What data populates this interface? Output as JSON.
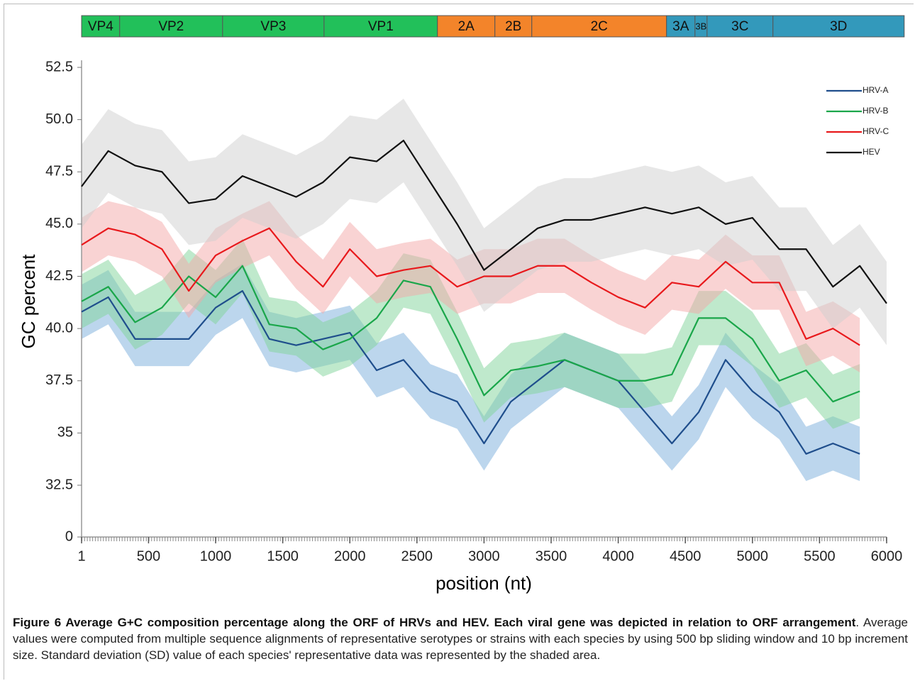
{
  "chart_data": {
    "type": "line",
    "ylabel": "GC percent",
    "xlabel": "position (nt)",
    "xlim": [
      1,
      6000
    ],
    "xticks": [
      1,
      500,
      1000,
      1500,
      2000,
      2500,
      3000,
      3500,
      4000,
      4500,
      5000,
      5500,
      6000
    ],
    "ylim": [
      0,
      52.5
    ],
    "ybreak": [
      0,
      32.5
    ],
    "yticks": [
      0,
      32.5,
      35,
      {
        "value": 37.5,
        "label": "37.5"
      },
      {
        "value": 40,
        "label": "40.0"
      },
      {
        "value": 42.5,
        "label": "42.5"
      },
      {
        "value": 45,
        "label": "45.0"
      },
      {
        "value": 47.5,
        "label": "47.5"
      },
      {
        "value": 50,
        "label": "50.0"
      },
      {
        "value": 52.5,
        "label": "52.5"
      }
    ],
    "legend": "upper right",
    "x": [
      1,
      200,
      400,
      600,
      800,
      1000,
      1200,
      1400,
      1600,
      1800,
      2000,
      2200,
      2400,
      2600,
      2800,
      3000,
      3200,
      3400,
      3600,
      3800,
      4000,
      4200,
      4400,
      4600,
      4800,
      5000,
      5200,
      5400,
      5600,
      5800,
      6000
    ],
    "series": [
      {
        "name": "HRV-A",
        "color": "#1f4e8c",
        "band_color": "#7aaedc",
        "sd": 1.3,
        "values": [
          40.8,
          41.5,
          39.5,
          39.5,
          39.5,
          41.0,
          41.8,
          39.5,
          39.2,
          39.5,
          39.8,
          38.0,
          38.5,
          37.0,
          36.5,
          34.5,
          36.5,
          37.5,
          38.5,
          38.0,
          37.5,
          36.0,
          34.5,
          36.0,
          38.5,
          37.0,
          36.0,
          34.0,
          34.5,
          34.0,
          null
        ]
      },
      {
        "name": "HRV-B",
        "color": "#1aa64a",
        "band_color": "#7fd39a",
        "sd": 1.3,
        "values": [
          41.3,
          42.0,
          40.3,
          41.0,
          42.5,
          41.5,
          43.0,
          40.2,
          40.0,
          39.0,
          39.5,
          40.5,
          42.3,
          42.0,
          39.5,
          36.8,
          38.0,
          38.2,
          38.5,
          38.0,
          37.5,
          37.5,
          37.8,
          40.5,
          40.5,
          39.5,
          37.5,
          38.0,
          36.5,
          37.0,
          null
        ]
      },
      {
        "name": "HRV-C",
        "color": "#e8191c",
        "band_color": "#f4a8a8",
        "sd": 1.3,
        "values": [
          44.0,
          44.8,
          44.5,
          43.8,
          41.8,
          43.5,
          44.2,
          44.8,
          43.2,
          42.0,
          43.8,
          42.5,
          42.8,
          43.0,
          42.0,
          42.5,
          42.5,
          43.0,
          43.0,
          42.2,
          41.5,
          41.0,
          42.2,
          42.0,
          43.2,
          42.2,
          42.2,
          39.5,
          40.0,
          39.2,
          null
        ]
      },
      {
        "name": "HEV",
        "color": "#111111",
        "band_color": "#cfcfcf",
        "sd": 2.0,
        "values": [
          46.8,
          48.5,
          47.8,
          47.5,
          46.0,
          46.2,
          47.3,
          46.8,
          46.3,
          47.0,
          48.2,
          48.0,
          49.0,
          47.0,
          45.0,
          42.8,
          43.8,
          44.8,
          45.2,
          45.2,
          45.5,
          45.8,
          45.5,
          45.8,
          45.0,
          45.3,
          43.8,
          43.8,
          42.0,
          43.0,
          41.2
        ]
      }
    ],
    "genes": [
      {
        "label": "VP4",
        "start": 1,
        "end": 285,
        "color": "#22c05a"
      },
      {
        "label": "VP2",
        "start": 285,
        "end": 1052,
        "color": "#22c05a"
      },
      {
        "label": "VP3",
        "start": 1052,
        "end": 1808,
        "color": "#22c05a"
      },
      {
        "label": "VP1",
        "start": 1808,
        "end": 2653,
        "color": "#22c05a"
      },
      {
        "label": "2A",
        "start": 2653,
        "end": 3081,
        "color": "#f3842a"
      },
      {
        "label": "2B",
        "start": 3081,
        "end": 3356,
        "color": "#f3842a"
      },
      {
        "label": "2C",
        "start": 3356,
        "end": 4360,
        "color": "#f3842a"
      },
      {
        "label": "3A",
        "start": 4360,
        "end": 4572,
        "color": "#3399bb"
      },
      {
        "label": "3B",
        "start": 4572,
        "end": 4662,
        "color": "#3399bb"
      },
      {
        "label": "3C",
        "start": 4662,
        "end": 5153,
        "color": "#3399bb"
      },
      {
        "label": "3D",
        "start": 5153,
        "end": 6131,
        "color": "#3399bb"
      }
    ]
  },
  "caption": {
    "bold": "Figure 6 Average G+C composition percentage along the ORF of HRVs and HEV. Each viral gene was depicted in relation to ORF arrangement",
    "text": ". Average values were computed from multiple sequence alignments of representative serotypes or strains with each species by using 500 bp sliding window and 10 bp increment size. Standard deviation (SD) value of each species' representative data was represented by the shaded area."
  }
}
